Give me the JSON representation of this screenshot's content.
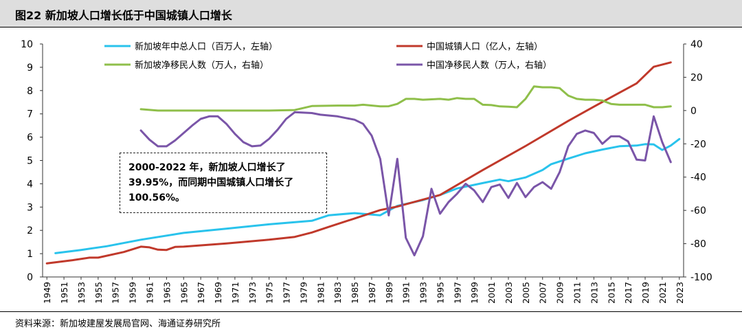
{
  "title": "图22 新加坡人口增长低于中国城镇人口增长",
  "source": "资料来源：新加坡建屋发展局官网、海通证券研究所",
  "annotation": {
    "line1": "2000-2022 年，新加坡人口增长了",
    "line2": "39.95%，而同期中国城镇人口增长了",
    "line3": "100.56%。"
  },
  "colors": {
    "sg_total": "#29c3ec",
    "cn_urban": "#c0392b",
    "sg_migrants": "#8fbf4a",
    "cn_migrants": "#7a55a8"
  },
  "chart_data": {
    "type": "line",
    "x_ticks": [
      1949,
      1951,
      1953,
      1955,
      1957,
      1959,
      1961,
      1963,
      1965,
      1967,
      1969,
      1971,
      1973,
      1975,
      1977,
      1979,
      1981,
      1983,
      1985,
      1987,
      1989,
      1991,
      1993,
      1995,
      1997,
      1999,
      2001,
      2003,
      2005,
      2007,
      2009,
      2011,
      2013,
      2015,
      2017,
      2019,
      2021,
      2023
    ],
    "y_left": {
      "min": 0,
      "max": 10,
      "ticks": [
        "0",
        "1",
        "2",
        "3",
        "4",
        "5",
        "6",
        "7",
        "8",
        "9",
        "10"
      ]
    },
    "y_right": {
      "min": -100,
      "max": 40,
      "ticks": [
        "-100",
        "-80",
        "-60",
        "-40",
        "-20",
        "0",
        "20",
        "40"
      ]
    },
    "grid": false,
    "legend_position": "top",
    "series": [
      {
        "name": "新加坡年中总人口（百万人，左轴）",
        "axis": "left",
        "color_key": "sg_total",
        "points": [
          [
            1950,
            1.02
          ],
          [
            1953,
            1.16
          ],
          [
            1956,
            1.32
          ],
          [
            1960,
            1.6
          ],
          [
            1965,
            1.89
          ],
          [
            1970,
            2.07
          ],
          [
            1975,
            2.26
          ],
          [
            1980,
            2.41
          ],
          [
            1982,
            2.65
          ],
          [
            1985,
            2.74
          ],
          [
            1988,
            2.65
          ],
          [
            1990,
            3.05
          ],
          [
            1993,
            3.3
          ],
          [
            1995,
            3.52
          ],
          [
            1997,
            3.8
          ],
          [
            2000,
            4.03
          ],
          [
            2002,
            4.18
          ],
          [
            2003,
            4.11
          ],
          [
            2005,
            4.27
          ],
          [
            2007,
            4.59
          ],
          [
            2008,
            4.84
          ],
          [
            2010,
            5.08
          ],
          [
            2012,
            5.31
          ],
          [
            2014,
            5.47
          ],
          [
            2016,
            5.61
          ],
          [
            2018,
            5.64
          ],
          [
            2019,
            5.7
          ],
          [
            2020,
            5.69
          ],
          [
            2021,
            5.45
          ],
          [
            2022,
            5.64
          ],
          [
            2023,
            5.92
          ]
        ]
      },
      {
        "name": "中国城镇人口（亿人，左轴）",
        "axis": "left",
        "color_key": "cn_urban",
        "points": [
          [
            1949,
            0.58
          ],
          [
            1952,
            0.72
          ],
          [
            1954,
            0.83
          ],
          [
            1955,
            0.83
          ],
          [
            1958,
            1.07
          ],
          [
            1960,
            1.3
          ],
          [
            1961,
            1.27
          ],
          [
            1962,
            1.17
          ],
          [
            1963,
            1.16
          ],
          [
            1964,
            1.29
          ],
          [
            1965,
            1.3
          ],
          [
            1970,
            1.44
          ],
          [
            1975,
            1.6
          ],
          [
            1978,
            1.72
          ],
          [
            1980,
            1.91
          ],
          [
            1982,
            2.15
          ],
          [
            1985,
            2.51
          ],
          [
            1988,
            2.87
          ],
          [
            1990,
            3.02
          ],
          [
            1992,
            3.22
          ],
          [
            1995,
            3.52
          ],
          [
            2000,
            4.59
          ],
          [
            2005,
            5.62
          ],
          [
            2010,
            6.7
          ],
          [
            2013,
            7.31
          ],
          [
            2015,
            7.71
          ],
          [
            2018,
            8.31
          ],
          [
            2020,
            9.02
          ],
          [
            2022,
            9.21
          ]
        ]
      },
      {
        "name": "新加坡净移民人数（万人，右轴）",
        "axis": "right",
        "color_key": "sg_migrants",
        "points": [
          [
            1960,
            0.8
          ],
          [
            1962,
            0
          ],
          [
            1975,
            0
          ],
          [
            1978,
            0.3
          ],
          [
            1980,
            2.7
          ],
          [
            1983,
            3
          ],
          [
            1985,
            3
          ],
          [
            1986,
            3.5
          ],
          [
            1988,
            2.5
          ],
          [
            1989,
            2.6
          ],
          [
            1990,
            4
          ],
          [
            1991,
            7
          ],
          [
            1992,
            7
          ],
          [
            1993,
            6.5
          ],
          [
            1995,
            7
          ],
          [
            1996,
            6.5
          ],
          [
            1997,
            7.5
          ],
          [
            1998,
            7
          ],
          [
            1999,
            7
          ],
          [
            2000,
            3.5
          ],
          [
            2001,
            3.3
          ],
          [
            2002,
            2.5
          ],
          [
            2003,
            2.3
          ],
          [
            2004,
            2
          ],
          [
            2005,
            7
          ],
          [
            2006,
            14.5
          ],
          [
            2007,
            14
          ],
          [
            2008,
            14
          ],
          [
            2009,
            13.5
          ],
          [
            2010,
            9
          ],
          [
            2011,
            7
          ],
          [
            2012,
            6.5
          ],
          [
            2013,
            6.5
          ],
          [
            2014,
            6
          ],
          [
            2015,
            4
          ],
          [
            2016,
            3.5
          ],
          [
            2017,
            3.5
          ],
          [
            2018,
            3.5
          ],
          [
            2019,
            3.5
          ],
          [
            2020,
            2
          ],
          [
            2021,
            2
          ],
          [
            2022,
            2.5
          ]
        ]
      },
      {
        "name": "中国净移民人数（万人，右轴）",
        "axis": "right",
        "color_key": "cn_migrants",
        "points": [
          [
            1960,
            -12
          ],
          [
            1961,
            -17.5
          ],
          [
            1962,
            -21.5
          ],
          [
            1963,
            -21.5
          ],
          [
            1964,
            -18
          ],
          [
            1966,
            -9
          ],
          [
            1967,
            -5
          ],
          [
            1968,
            -3.5
          ],
          [
            1969,
            -3.5
          ],
          [
            1970,
            -8
          ],
          [
            1971,
            -14
          ],
          [
            1972,
            -19
          ],
          [
            1973,
            -21.5
          ],
          [
            1974,
            -21
          ],
          [
            1975,
            -17
          ],
          [
            1976,
            -11.5
          ],
          [
            1977,
            -5
          ],
          [
            1978,
            -1
          ],
          [
            1980,
            -1.5
          ],
          [
            1981,
            -2.5
          ],
          [
            1983,
            -3.5
          ],
          [
            1984,
            -4.5
          ],
          [
            1985,
            -5.5
          ],
          [
            1986,
            -8
          ],
          [
            1987,
            -15
          ],
          [
            1988,
            -29
          ],
          [
            1989,
            -63
          ],
          [
            1990,
            -29
          ],
          [
            1991,
            -76.5
          ],
          [
            1992,
            -87
          ],
          [
            1993,
            -75.5
          ],
          [
            1994,
            -47
          ],
          [
            1995,
            -62
          ],
          [
            1996,
            -55
          ],
          [
            1997,
            -50
          ],
          [
            1998,
            -44
          ],
          [
            1999,
            -48
          ],
          [
            2000,
            -55
          ],
          [
            2001,
            -46
          ],
          [
            2002,
            -44.5
          ],
          [
            2003,
            -52.5
          ],
          [
            2004,
            -43.5
          ],
          [
            2005,
            -52
          ],
          [
            2006,
            -46
          ],
          [
            2007,
            -43
          ],
          [
            2008,
            -47
          ],
          [
            2009,
            -37
          ],
          [
            2010,
            -21.5
          ],
          [
            2011,
            -14
          ],
          [
            2012,
            -12
          ],
          [
            2013,
            -13.5
          ],
          [
            2014,
            -20
          ],
          [
            2015,
            -15.5
          ],
          [
            2016,
            -15.5
          ],
          [
            2017,
            -18.5
          ],
          [
            2018,
            -29.5
          ],
          [
            2019,
            -30
          ],
          [
            2020,
            -3.5
          ],
          [
            2021,
            -19
          ],
          [
            2022,
            -31
          ]
        ]
      }
    ]
  }
}
